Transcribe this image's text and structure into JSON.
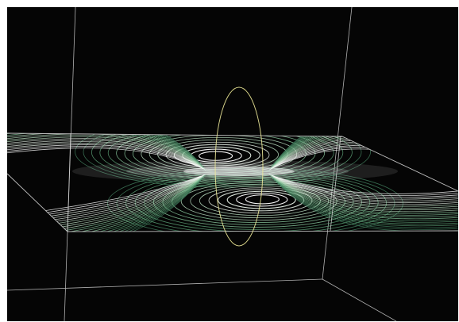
{
  "scene": {
    "background": "#050505",
    "frame_color": "#cfcfcf",
    "plane_edge_color": "#bfbfbf",
    "ring_color": "#e8e27a",
    "field_colors": [
      "#ffffff",
      "#e6f0e6",
      "#b9dcbf",
      "#86c39a",
      "#5b9e74",
      "#3f7a5a"
    ]
  }
}
